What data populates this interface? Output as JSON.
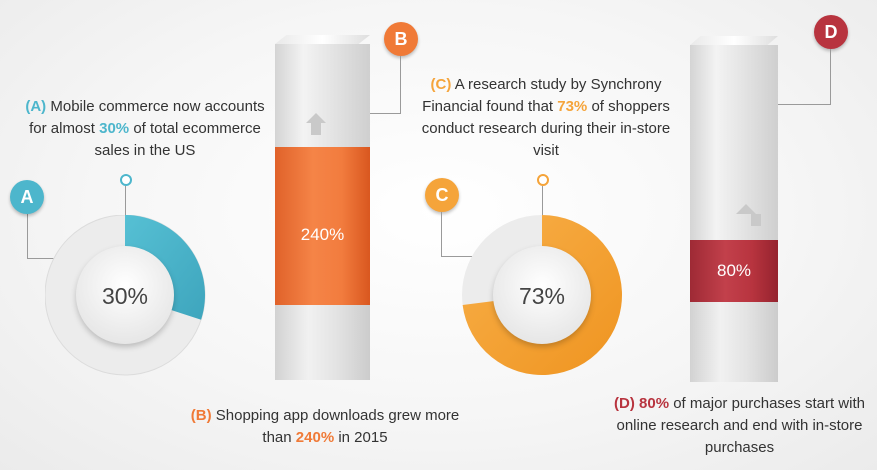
{
  "colors": {
    "teal": "#4db6cc",
    "orange": "#f07a37",
    "amber": "#f5a43a",
    "crimson": "#b8343f"
  },
  "stats": {
    "a": {
      "badge": "A",
      "value_label": "30%",
      "fraction": 0.3,
      "caption_prefix": "(A)",
      "caption_part1": "Mobile commerce now accounts for almost",
      "caption_highlight": "30%",
      "caption_part2": "of total ecommerce sales in the US"
    },
    "b": {
      "badge": "B",
      "value_label": "240%",
      "caption_prefix": "(B)",
      "caption_part1": "Shopping app downloads grew more than",
      "caption_highlight": "240%",
      "caption_part2": "in 2015"
    },
    "c": {
      "badge": "C",
      "value_label": "73%",
      "fraction": 0.73,
      "caption_prefix": "(C)",
      "caption_part1": "A research study by Synchrony Financial found that",
      "caption_highlight": "73%",
      "caption_part2": "of shoppers conduct research during their in-store visit"
    },
    "d": {
      "badge": "D",
      "value_label": "80%",
      "caption_prefix": "(D)",
      "caption_part1": "",
      "caption_highlight": "80%",
      "caption_part2": "of major purchases start with online research and end with in-store purchases"
    }
  }
}
